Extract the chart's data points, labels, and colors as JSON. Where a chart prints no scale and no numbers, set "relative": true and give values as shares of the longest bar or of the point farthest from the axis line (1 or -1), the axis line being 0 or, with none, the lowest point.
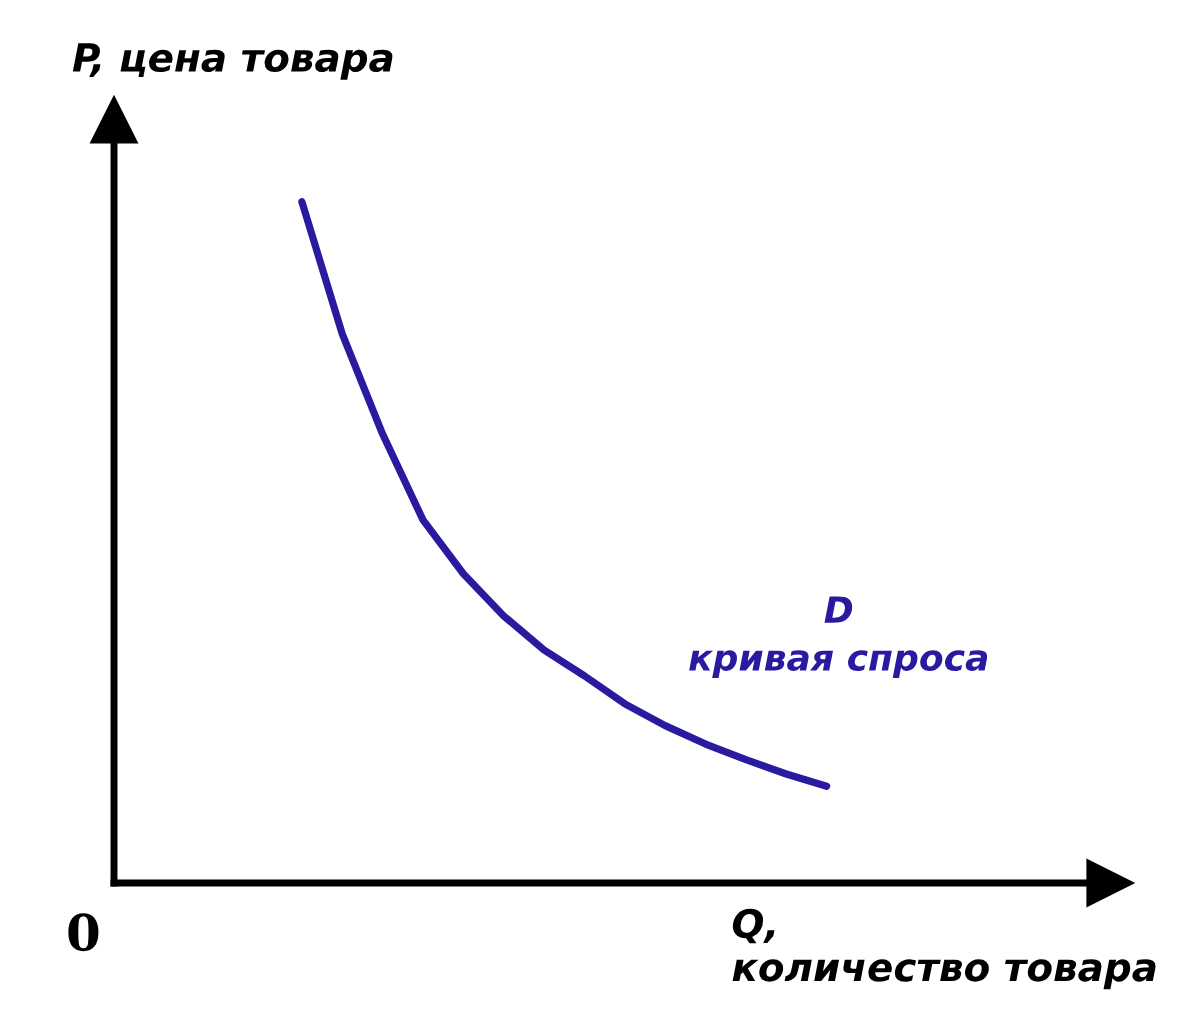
{
  "chart_data": {
    "type": "line",
    "relative": true,
    "ylabel": "P, цена товара",
    "xlabel": "Q,\nколичество товара",
    "categories": [
      null,
      null,
      null,
      null,
      null,
      null,
      null,
      null,
      null,
      null,
      null,
      null,
      null,
      null
    ],
    "series": [
      {
        "name": "D",
        "color": "#2a1aa0",
        "values": [
          1.0,
          0.806,
          0.659,
          0.533,
          0.454,
          0.392,
          0.342,
          0.304,
          0.263,
          0.231,
          0.204,
          0.181,
          0.16,
          0.142
        ]
      }
    ],
    "annotations": [
      "кривая спроса",
      "0"
    ]
  }
}
